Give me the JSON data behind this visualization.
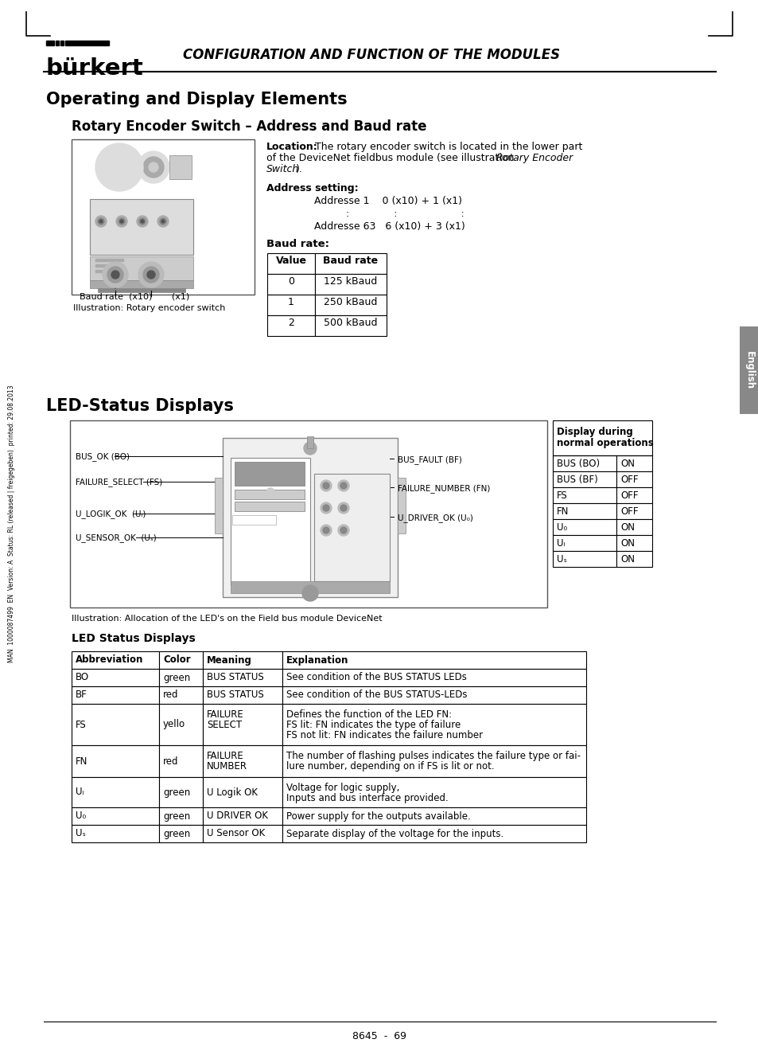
{
  "page_bg": "#ffffff",
  "header_title": "CONFIGURATION AND FUNCTION OF THE MODULES",
  "section_title": "Operating and Display Elements",
  "subsection_title": "Rotary Encoder Switch – Address and Baud rate",
  "location_bold": "Location:",
  "location_rest": " The rotary encoder switch is located in the lower part\nof the DeviceNet fieldbus module (see illustration ",
  "location_italic": "Rotary Encoder\nSwitch",
  "location_end": ").",
  "address_setting_label": "Address setting:",
  "address_line1": "Addresse 1    0 (x10) + 1 (x1)",
  "address_line2": "      :              :                   :",
  "address_line3": "Addresse 63   6 (x10) + 3 (x1)",
  "baud_rate_label": "Baud rate:",
  "baud_table_headers": [
    "Value",
    "Baud rate"
  ],
  "baud_table_rows": [
    [
      "0",
      "125 kBaud"
    ],
    [
      "1",
      "250 kBaud"
    ],
    [
      "2",
      "500 kBaud"
    ]
  ],
  "illus_caption1": "Illustration: Rotary encoder switch",
  "baud_caption": "Baud rate  (x10)      (x1)",
  "led_section_title": "LED-Status Displays",
  "led_labels_left": [
    "BUS_OK (BO)",
    "FAILURE_SELECT (FS)",
    "U_LOGIK_OK  (Uᵢ)",
    "U_SENSOR_OK  (Uₛ)"
  ],
  "led_labels_right": [
    "BUS_FAULT (BF)",
    "FAILURE_NUMBER (FN)",
    "U_DRIVER_OK (U₀)"
  ],
  "display_table_rows": [
    [
      "BUS (BO)",
      "ON"
    ],
    [
      "BUS (BF)",
      "OFF"
    ],
    [
      "FS",
      "OFF"
    ],
    [
      "FN",
      "OFF"
    ],
    [
      "U₀",
      "ON"
    ],
    [
      "Uᵢ",
      "ON"
    ],
    [
      "Uₛ",
      "ON"
    ]
  ],
  "illus_caption3": "Illustration: Allocation of the LED's on the Field bus module DeviceNet",
  "led_status_subtitle": "LED Status Displays",
  "led_table_headers": [
    "Abbreviation",
    "Color",
    "Meaning",
    "Explanation"
  ],
  "led_table_rows": [
    [
      "BO",
      "green",
      "BUS STATUS",
      "See condition of the BUS STATUS LEDs"
    ],
    [
      "BF",
      "red",
      "BUS STATUS",
      "See condition of the BUS STATUS-LEDs"
    ],
    [
      "FS",
      "yello",
      "FAILURE\nSELECT",
      "Defines the function of the LED FN:\nFS lit: FN indicates the type of failure\nFS not lit: FN indicates the failure number"
    ],
    [
      "FN",
      "red",
      "FAILURE\nNUMBER",
      "The number of flashing pulses indicates the failure type or fai-\nlure number, depending on if FS is lit or not."
    ],
    [
      "Uᵢ",
      "green",
      "U Logik OK",
      "Voltage for logic supply,\nInputs and bus interface provided."
    ],
    [
      "U₀",
      "green",
      "U DRIVER OK",
      "Power supply for the outputs available."
    ],
    [
      "Uₛ",
      "green",
      "U Sensor OK",
      "Separate display of the voltage for the inputs."
    ]
  ],
  "footer_text": "8645  -  69",
  "side_text": "MAN  1000087499  EN  Version: A  Status: RL (released | freigegeben)  printed: 29.08.2013",
  "english_tab_text": "English"
}
